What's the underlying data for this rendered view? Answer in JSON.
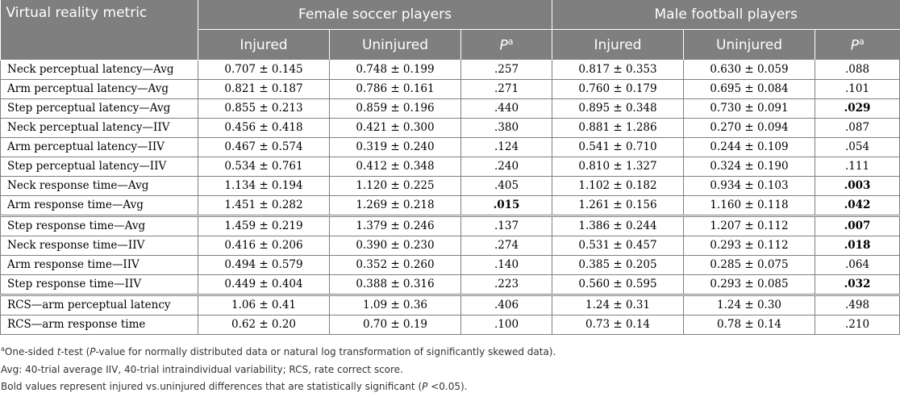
{
  "header": {
    "metric_label": "Virtual reality metric",
    "group1": "Female soccer players",
    "group2": "Male football players",
    "sub": [
      "Injured",
      "Uninjured",
      "P",
      "Injured",
      "Uninjured",
      "P"
    ],
    "p_sup": "a"
  },
  "rows": [
    {
      "metric": "Neck perceptual latency—Avg",
      "f_inj": "0.707 ± 0.145",
      "f_un": "0.748 ± 0.199",
      "f_p": ".257",
      "m_inj": "0.817 ± 0.353",
      "m_un": "0.630 ± 0.059",
      "m_p": ".088"
    },
    {
      "metric": "Arm perceptual latency—Avg",
      "f_inj": "0.821 ± 0.187",
      "f_un": "0.786 ± 0.161",
      "f_p": ".271",
      "m_inj": "0.760 ± 0.179",
      "m_un": "0.695 ± 0.084",
      "m_p": ".101"
    },
    {
      "metric": "Step perceptual latency—Avg",
      "f_inj": "0.855 ± 0.213",
      "f_un": "0.859 ± 0.196",
      "f_p": ".440",
      "m_inj": "0.895 ± 0.348",
      "m_un": "0.730 ± 0.091",
      "m_p": ".029"
    },
    {
      "metric": "Neck perceptual latency—IIV",
      "f_inj": "0.456 ± 0.418",
      "f_un": "0.421 ± 0.300",
      "f_p": ".380",
      "m_inj": "0.881 ± 1.286",
      "m_un": "0.270 ± 0.094",
      "m_p": ".087"
    },
    {
      "metric": "Arm perceptual latency—IIV",
      "f_inj": "0.467 ± 0.574",
      "f_un": "0.319 ± 0.240",
      "f_p": ".124",
      "m_inj": "0.541 ± 0.710",
      "m_un": "0.244 ± 0.109",
      "m_p": ".054"
    },
    {
      "metric": "Step perceptual latency—IIV",
      "f_inj": "0.534 ± 0.761",
      "f_un": "0.412 ± 0.348",
      "f_p": ".240",
      "m_inj": "0.810 ± 1.327",
      "m_un": "0.324 ± 0.190",
      "m_p": ".111"
    },
    {
      "metric": "Neck response time—Avg",
      "f_inj": "1.134 ± 0.194",
      "f_un": "1.120 ± 0.225",
      "f_p": ".405",
      "m_inj": "1.102 ± 0.182",
      "m_un": "0.934 ± 0.103",
      "m_p": ".003"
    },
    {
      "metric": "Arm response time—Avg",
      "f_inj": "1.451 ± 0.282",
      "f_un": "1.269 ± 0.218",
      "f_p": ".015",
      "m_inj": "1.261 ± 0.156",
      "m_un": "1.160 ± 0.118",
      "m_p": ".042"
    },
    {
      "metric": "Step response time—Avg",
      "f_inj": "1.459 ± 0.219",
      "f_un": "1.379 ± 0.246",
      "f_p": ".137",
      "m_inj": "1.386 ± 0.244",
      "m_un": "1.207 ± 0.112",
      "m_p": ".007"
    },
    {
      "metric": "Neck response time—IIV",
      "f_inj": "0.416 ± 0.206",
      "f_un": "0.390 ± 0.230",
      "f_p": ".274",
      "m_inj": "0.531 ± 0.457",
      "m_un": "0.293 ± 0.112",
      "m_p": ".018"
    },
    {
      "metric": "Arm response time—IIV",
      "f_inj": "0.494 ± 0.579",
      "f_un": "0.352 ± 0.260",
      "f_p": ".140",
      "m_inj": "0.385 ± 0.205",
      "m_un": "0.285 ± 0.075",
      "m_p": ".064"
    },
    {
      "metric": "Step response time—IIV",
      "f_inj": "0.449 ± 0.404",
      "f_un": "0.388 ± 0.316",
      "f_p": ".223",
      "m_inj": "0.560 ± 0.595",
      "m_un": "0.293 ± 0.085",
      "m_p": ".032"
    },
    {
      "metric": "RCS—arm perceptual latency",
      "f_inj": "1.06 ± 0.41",
      "f_un": "1.09 ± 0.36",
      "f_p": ".406",
      "m_inj": "1.24 ± 0.31",
      "m_un": "1.24 ± 0.30",
      "m_p": ".498"
    },
    {
      "metric": "RCS—arm response time",
      "f_inj": "0.62 ± 0.20",
      "f_un": "0.70 ± 0.19",
      "f_p": ".100",
      "m_inj": "0.73 ± 0.14",
      "m_un": "0.78 ± 0.14",
      "m_p": ".210"
    }
  ],
  "notes": {
    "n1_sup": "a",
    "n1_a": "One-sided ",
    "n1_t": "t",
    "n1_b": "-test (",
    "n1_p": "P",
    "n1_c": "-value for normally distributed data or natural log transformation of significantly skewed data).",
    "n2": "Avg: 40-trial average IIV, 40-trial intraindividual variability; RCS, rate correct score.",
    "n3_a": "Bold values represent injured vs.uninjured differences that are statistically significant (",
    "n3_p": "P",
    "n3_b": " <0.05)."
  }
}
